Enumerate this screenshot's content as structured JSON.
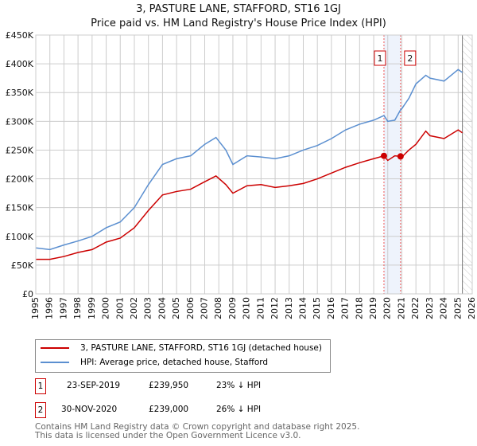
{
  "chart_data": {
    "type": "line",
    "title": "3, PASTURE LANE, STAFFORD, ST16 1GJ",
    "subtitle": "Price paid vs. HM Land Registry's House Price Index (HPI)",
    "xlim": [
      1995,
      2026
    ],
    "ylim": [
      0,
      450000
    ],
    "x_ticks": [
      "1995",
      "1996",
      "1997",
      "1998",
      "1999",
      "2000",
      "2001",
      "2002",
      "2003",
      "2004",
      "2005",
      "2006",
      "2007",
      "2008",
      "2009",
      "2010",
      "2011",
      "2012",
      "2013",
      "2014",
      "2015",
      "2016",
      "2017",
      "2018",
      "2019",
      "2020",
      "2021",
      "2022",
      "2023",
      "2024",
      "2025",
      "2026"
    ],
    "y_ticks": [
      {
        "v": 0,
        "label": "£0"
      },
      {
        "v": 50000,
        "label": "£50K"
      },
      {
        "v": 100000,
        "label": "£100K"
      },
      {
        "v": 150000,
        "label": "£150K"
      },
      {
        "v": 200000,
        "label": "£200K"
      },
      {
        "v": 250000,
        "label": "£250K"
      },
      {
        "v": 300000,
        "label": "£300K"
      },
      {
        "v": 350000,
        "label": "£350K"
      },
      {
        "v": 400000,
        "label": "£400K"
      },
      {
        "v": 450000,
        "label": "£450K"
      }
    ],
    "grid": true,
    "series": [
      {
        "name": "3, PASTURE LANE, STAFFORD, ST16 1GJ (detached house)",
        "color": "#cc0000",
        "x": [
          1995,
          1996,
          1997,
          1998,
          1999,
          2000,
          2001,
          2002,
          2003,
          2004,
          2005,
          2006,
          2007,
          2007.8,
          2008.5,
          2009,
          2010,
          2011,
          2012,
          2013,
          2014,
          2015,
          2016,
          2017,
          2018,
          2019,
          2019.73,
          2020,
          2020.5,
          2020.91,
          2021,
          2021.5,
          2022,
          2022.7,
          2023,
          2024,
          2025,
          2025.3
        ],
        "y": [
          60000,
          60000,
          65000,
          72000,
          77000,
          90000,
          97000,
          115000,
          145000,
          172000,
          178000,
          182000,
          195000,
          205000,
          190000,
          175000,
          188000,
          190000,
          185000,
          188000,
          192000,
          200000,
          210000,
          220000,
          228000,
          235000,
          239950,
          232000,
          240000,
          239000,
          238000,
          250000,
          260000,
          283000,
          275000,
          270000,
          285000,
          280000
        ]
      },
      {
        "name": "HPI: Average price, detached house, Stafford",
        "color": "#5b8fd0",
        "x": [
          1995,
          1996,
          1997,
          1998,
          1999,
          2000,
          2001,
          2002,
          2003,
          2004,
          2005,
          2006,
          2007,
          2007.8,
          2008.5,
          2009,
          2010,
          2011,
          2012,
          2013,
          2014,
          2015,
          2016,
          2017,
          2018,
          2019,
          2019.73,
          2020,
          2020.5,
          2020.91,
          2021,
          2021.5,
          2022,
          2022.7,
          2023,
          2024,
          2025,
          2025.3
        ],
        "y": [
          80000,
          77000,
          85000,
          92000,
          100000,
          115000,
          125000,
          150000,
          190000,
          225000,
          235000,
          240000,
          260000,
          272000,
          250000,
          225000,
          240000,
          238000,
          235000,
          240000,
          250000,
          258000,
          270000,
          285000,
          295000,
          302000,
          310000,
          300000,
          302000,
          320000,
          322000,
          340000,
          365000,
          380000,
          375000,
          370000,
          390000,
          385000
        ]
      }
    ],
    "sales": [
      {
        "id": "1",
        "x": 2019.73,
        "y": 239950,
        "date": "23-SEP-2019",
        "price": "£239,950",
        "hpi": "23% ↓ HPI"
      },
      {
        "id": "2",
        "x": 2020.91,
        "y": 239000,
        "date": "30-NOV-2020",
        "price": "£239,000",
        "hpi": "26% ↓ HPI"
      }
    ],
    "forecast_start": 2025.3,
    "legend_placement": "below"
  },
  "footer": {
    "line1": "Contains HM Land Registry data © Crown copyright and database right 2025.",
    "line2": "This data is licensed under the Open Government Licence v3.0."
  }
}
